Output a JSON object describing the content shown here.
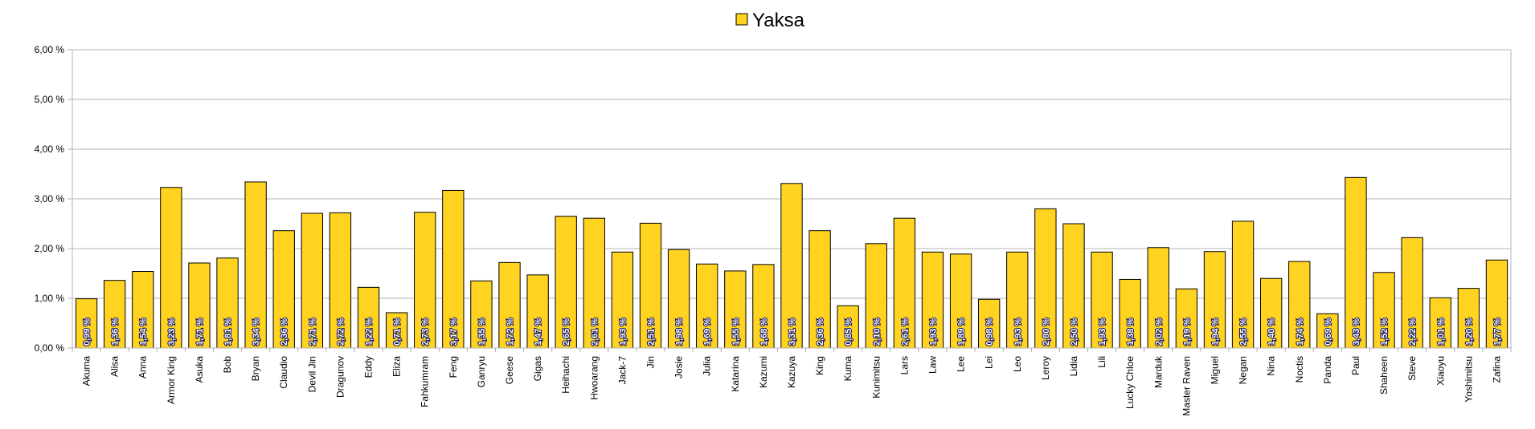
{
  "chart_data": {
    "type": "bar",
    "categories": [
      "Akuma",
      "Alisa",
      "Anna",
      "Armor King",
      "Asuka",
      "Bob",
      "Bryan",
      "Claudio",
      "Devil Jin",
      "Dragunov",
      "Eddy",
      "Eliza",
      "Fahkumram",
      "Feng",
      "Ganryu",
      "Geese",
      "Gigas",
      "Heihachi",
      "Hwoarang",
      "Jack-7",
      "Jin",
      "Josie",
      "Julia",
      "Katarina",
      "Kazumi",
      "Kazuya",
      "King",
      "Kuma",
      "Kunimitsu",
      "Lars",
      "Law",
      "Lee",
      "Lei",
      "Leo",
      "Leroy",
      "Lidia",
      "Lili",
      "Lucky Chloe",
      "Marduk",
      "Master Raven",
      "Miguel",
      "Negan",
      "Nina",
      "Noctis",
      "Panda",
      "Paul",
      "Shaheen",
      "Steve",
      "Xiaoyu",
      "Yoshimitsu",
      "Zafina"
    ],
    "series": [
      {
        "name": "Yaksa",
        "values": [
          0.99,
          1.36,
          1.54,
          3.23,
          1.71,
          1.81,
          3.34,
          2.36,
          2.71,
          2.72,
          1.22,
          0.71,
          2.73,
          3.17,
          1.35,
          1.72,
          1.47,
          2.65,
          2.61,
          1.93,
          2.51,
          1.98,
          1.69,
          1.55,
          1.68,
          3.31,
          2.36,
          0.85,
          2.1,
          2.61,
          1.93,
          1.89,
          0.98,
          1.93,
          2.8,
          2.5,
          1.93,
          1.38,
          2.02,
          1.19,
          1.94,
          2.55,
          1.4,
          1.74,
          0.69,
          3.43,
          1.52,
          2.22,
          1.01,
          1.2,
          1.77
        ],
        "labels": [
          "0,99 %",
          "1,36 %",
          "1,54 %",
          "3,23 %",
          "1,71 %",
          "1,81 %",
          "3,34 %",
          "2,36 %",
          "2,71 %",
          "2,72 %",
          "1,22 %",
          "0,71 %",
          "2,73 %",
          "3,17 %",
          "1,35 %",
          "1,72 %",
          "1,47 %",
          "2,65 %",
          "2,61 %",
          "1,93 %",
          "2,51 %",
          "1,98 %",
          "1,69 %",
          "1,55 %",
          "1,68 %",
          "3,31 %",
          "2,36 %",
          "0,85 %",
          "2,10 %",
          "2,61 %",
          "1,93 %",
          "1,89 %",
          "0,98 %",
          "1,93 %",
          "2,80 %",
          "2,50 %",
          "1,93 %",
          "1,38 %",
          "2,02 %",
          "1,19 %",
          "1,94 %",
          "2,55 %",
          "1,40 %",
          "1,74 %",
          "0,69 %",
          "3,43 %",
          "1,52 %",
          "2,22 %",
          "1,01 %",
          "1,20 %",
          "1,77 %"
        ]
      }
    ],
    "ylim": [
      0,
      6
    ],
    "yticks": [
      0,
      1,
      2,
      3,
      4,
      5,
      6
    ],
    "ytick_labels": [
      "0,00 %",
      "1,00 %",
      "2,00 %",
      "3,00 %",
      "4,00 %",
      "5,00 %",
      "6,00 %"
    ],
    "grid": true,
    "legend_position": "top-center",
    "colors": {
      "bar": "#ffd320",
      "bar_border": "#000000",
      "grid": "#b3b3b3",
      "axis": "#b3b3b3"
    }
  }
}
